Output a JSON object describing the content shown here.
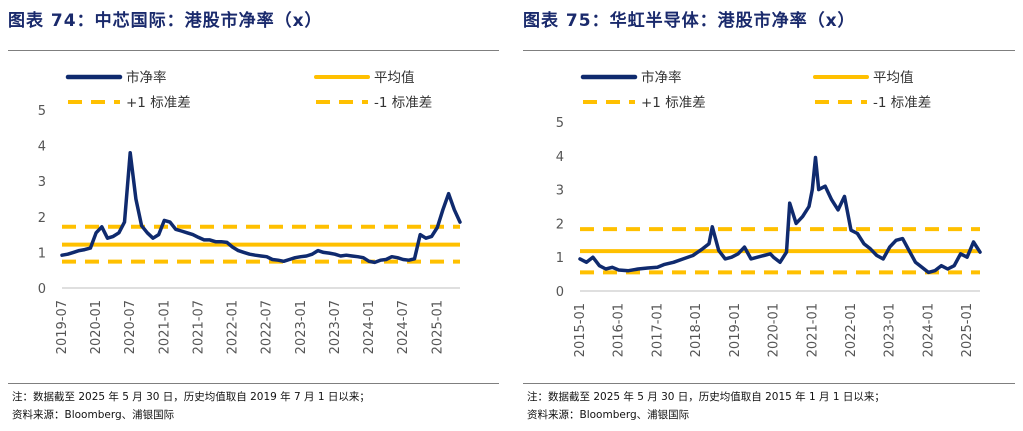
{
  "colors": {
    "line": "#0f2a6e",
    "band": "#ffc000",
    "title": "#1a2a6c",
    "axis": "#595959"
  },
  "chart_data": [
    {
      "type": "line",
      "title": "图表 74：中芯国际：港股市净率（x）",
      "ylim": [
        0,
        5
      ],
      "yticks": [
        "0",
        "1",
        "2",
        "3",
        "4",
        "5"
      ],
      "xticks": [
        "2019-07",
        "2020-01",
        "2020-07",
        "2021-01",
        "2021-07",
        "2022-01",
        "2022-07",
        "2023-01",
        "2023-07",
        "2024-01",
        "2024-07",
        "2025-01"
      ],
      "x_start": "2019-07",
      "x_end": "2025-05",
      "legend": {
        "pb": "市净率",
        "mean": "平均值",
        "plus": "+1 标准差",
        "minus": "-1 标准差"
      },
      "mean": 1.22,
      "plus_1sd": 1.72,
      "minus_1sd": 0.74,
      "series": [
        {
          "name": "市净率",
          "points": [
            [
              "2019-07",
              0.92
            ],
            [
              "2019-08",
              0.95
            ],
            [
              "2019-09",
              1.0
            ],
            [
              "2019-10",
              1.05
            ],
            [
              "2019-11",
              1.08
            ],
            [
              "2019-12",
              1.12
            ],
            [
              "2020-01",
              1.55
            ],
            [
              "2020-02",
              1.72
            ],
            [
              "2020-03",
              1.4
            ],
            [
              "2020-04",
              1.45
            ],
            [
              "2020-05",
              1.55
            ],
            [
              "2020-06",
              1.85
            ],
            [
              "2020-07",
              3.8
            ],
            [
              "2020-08",
              2.5
            ],
            [
              "2020-09",
              1.75
            ],
            [
              "2020-10",
              1.55
            ],
            [
              "2020-11",
              1.4
            ],
            [
              "2020-12",
              1.5
            ],
            [
              "2021-01",
              1.9
            ],
            [
              "2021-02",
              1.85
            ],
            [
              "2021-03",
              1.65
            ],
            [
              "2021-04",
              1.6
            ],
            [
              "2021-05",
              1.55
            ],
            [
              "2021-06",
              1.5
            ],
            [
              "2021-07",
              1.42
            ],
            [
              "2021-08",
              1.35
            ],
            [
              "2021-09",
              1.35
            ],
            [
              "2021-10",
              1.3
            ],
            [
              "2021-11",
              1.3
            ],
            [
              "2021-12",
              1.28
            ],
            [
              "2022-01",
              1.15
            ],
            [
              "2022-02",
              1.05
            ],
            [
              "2022-03",
              1.0
            ],
            [
              "2022-04",
              0.95
            ],
            [
              "2022-05",
              0.92
            ],
            [
              "2022-06",
              0.9
            ],
            [
              "2022-07",
              0.88
            ],
            [
              "2022-08",
              0.8
            ],
            [
              "2022-09",
              0.78
            ],
            [
              "2022-10",
              0.75
            ],
            [
              "2022-11",
              0.8
            ],
            [
              "2022-12",
              0.85
            ],
            [
              "2023-01",
              0.88
            ],
            [
              "2023-02",
              0.9
            ],
            [
              "2023-03",
              0.95
            ],
            [
              "2023-04",
              1.05
            ],
            [
              "2023-05",
              1.0
            ],
            [
              "2023-06",
              0.98
            ],
            [
              "2023-07",
              0.95
            ],
            [
              "2023-08",
              0.9
            ],
            [
              "2023-09",
              0.92
            ],
            [
              "2023-10",
              0.9
            ],
            [
              "2023-11",
              0.88
            ],
            [
              "2023-12",
              0.85
            ],
            [
              "2024-01",
              0.75
            ],
            [
              "2024-02",
              0.72
            ],
            [
              "2024-03",
              0.78
            ],
            [
              "2024-04",
              0.8
            ],
            [
              "2024-05",
              0.88
            ],
            [
              "2024-06",
              0.85
            ],
            [
              "2024-07",
              0.8
            ],
            [
              "2024-08",
              0.78
            ],
            [
              "2024-09",
              0.82
            ],
            [
              "2024-10",
              1.5
            ],
            [
              "2024-11",
              1.4
            ],
            [
              "2024-12",
              1.45
            ],
            [
              "2025-01",
              1.7
            ],
            [
              "2025-02",
              2.2
            ],
            [
              "2025-03",
              2.65
            ],
            [
              "2025-04",
              2.2
            ],
            [
              "2025-05",
              1.85
            ]
          ]
        }
      ],
      "notes": [
        "注：数据截至 2025 年 5 月 30 日，历史均值取自 2019 年 7 月 1 日以来；",
        "资料来源：Bloomberg、浦银国际"
      ]
    },
    {
      "type": "line",
      "title": "图表 75：华虹半导体：港股市净率（x）",
      "ylim": [
        0,
        5
      ],
      "yticks": [
        "0",
        "1",
        "2",
        "3",
        "4",
        "5"
      ],
      "xticks": [
        "2015-01",
        "2016-01",
        "2017-01",
        "2018-01",
        "2019-01",
        "2020-01",
        "2021-01",
        "2022-01",
        "2023-01",
        "2024-01",
        "2025-01"
      ],
      "x_start": "2015-01",
      "x_end": "2025-05",
      "legend": {
        "pb": "市净率",
        "mean": "平均值",
        "plus": "+1 标准差",
        "minus": "-1 标准差"
      },
      "mean": 1.18,
      "plus_1sd": 1.83,
      "minus_1sd": 0.55,
      "series": [
        {
          "name": "市净率",
          "points": [
            [
              "2015-01",
              0.95
            ],
            [
              "2015-03",
              0.85
            ],
            [
              "2015-05",
              1.0
            ],
            [
              "2015-07",
              0.75
            ],
            [
              "2015-09",
              0.65
            ],
            [
              "2015-11",
              0.7
            ],
            [
              "2016-01",
              0.62
            ],
            [
              "2016-04",
              0.6
            ],
            [
              "2016-07",
              0.65
            ],
            [
              "2016-10",
              0.68
            ],
            [
              "2017-01",
              0.7
            ],
            [
              "2017-03",
              0.78
            ],
            [
              "2017-06",
              0.85
            ],
            [
              "2017-09",
              0.95
            ],
            [
              "2017-12",
              1.05
            ],
            [
              "2018-03",
              1.25
            ],
            [
              "2018-05",
              1.4
            ],
            [
              "2018-06",
              1.9
            ],
            [
              "2018-08",
              1.2
            ],
            [
              "2018-10",
              0.95
            ],
            [
              "2018-12",
              1.0
            ],
            [
              "2019-02",
              1.1
            ],
            [
              "2019-04",
              1.3
            ],
            [
              "2019-06",
              0.95
            ],
            [
              "2019-08",
              1.0
            ],
            [
              "2019-10",
              1.05
            ],
            [
              "2019-12",
              1.1
            ],
            [
              "2020-01",
              1.0
            ],
            [
              "2020-03",
              0.85
            ],
            [
              "2020-05",
              1.15
            ],
            [
              "2020-06",
              2.6
            ],
            [
              "2020-08",
              2.0
            ],
            [
              "2020-10",
              2.2
            ],
            [
              "2020-12",
              2.5
            ],
            [
              "2021-01",
              3.0
            ],
            [
              "2021-02",
              3.95
            ],
            [
              "2021-03",
              3.0
            ],
            [
              "2021-05",
              3.1
            ],
            [
              "2021-07",
              2.7
            ],
            [
              "2021-09",
              2.4
            ],
            [
              "2021-11",
              2.8
            ],
            [
              "2022-01",
              1.8
            ],
            [
              "2022-03",
              1.7
            ],
            [
              "2022-05",
              1.4
            ],
            [
              "2022-07",
              1.25
            ],
            [
              "2022-09",
              1.05
            ],
            [
              "2022-11",
              0.95
            ],
            [
              "2023-01",
              1.3
            ],
            [
              "2023-03",
              1.5
            ],
            [
              "2023-05",
              1.55
            ],
            [
              "2023-07",
              1.2
            ],
            [
              "2023-09",
              0.85
            ],
            [
              "2023-11",
              0.7
            ],
            [
              "2024-01",
              0.55
            ],
            [
              "2024-03",
              0.6
            ],
            [
              "2024-05",
              0.75
            ],
            [
              "2024-07",
              0.65
            ],
            [
              "2024-09",
              0.75
            ],
            [
              "2024-11",
              1.1
            ],
            [
              "2025-01",
              1.0
            ],
            [
              "2025-03",
              1.45
            ],
            [
              "2025-05",
              1.15
            ]
          ]
        }
      ],
      "notes": [
        "注：数据截至 2025 年 5 月 30 日，历史均值取自 2015 年 1 月 1 日以来；",
        "资料来源：Bloomberg、浦银国际"
      ]
    }
  ]
}
